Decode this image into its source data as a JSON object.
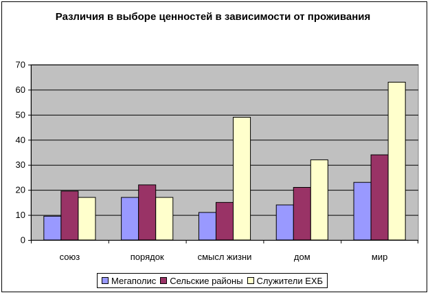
{
  "chart_data": {
    "type": "bar",
    "title": "Различия в выборе ценностей в зависимости от проживания",
    "categories": [
      "союз",
      "порядок",
      "смысл жизни",
      "дом",
      "мир"
    ],
    "series": [
      {
        "name": "Мегаполис",
        "color": "#9999FF",
        "values": [
          9.5,
          17,
          11,
          14,
          23
        ]
      },
      {
        "name": "Сельские районы",
        "color": "#993366",
        "values": [
          19.5,
          22,
          15,
          21,
          34
        ]
      },
      {
        "name": "Служители ЕХБ",
        "color": "#FFFFCC",
        "values": [
          17,
          17,
          49,
          32,
          63
        ]
      }
    ],
    "ylim": [
      0,
      70
    ],
    "yticks": [
      0,
      10,
      20,
      30,
      40,
      50,
      60,
      70
    ],
    "xlabel": "",
    "ylabel": "",
    "grid": true,
    "plot_background": "#C0C0C0",
    "legend_position": "bottom"
  }
}
